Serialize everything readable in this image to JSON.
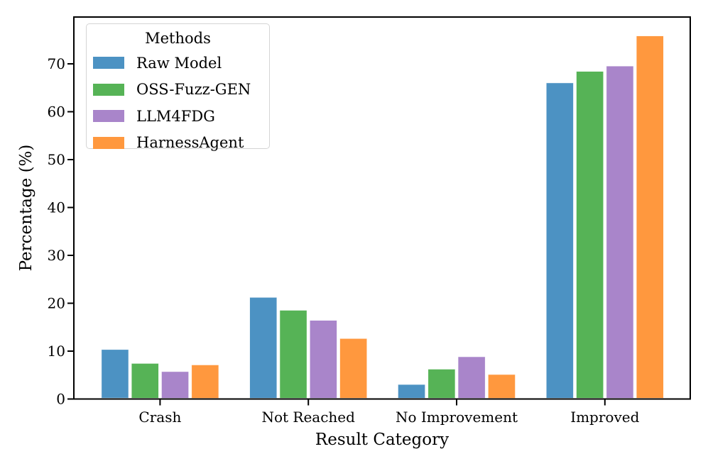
{
  "chart_data": {
    "type": "bar",
    "categories": [
      "Crash",
      "Not Reached",
      "No Improvement",
      "Improved"
    ],
    "series": [
      {
        "name": "Raw Model",
        "color": "#4C92C3",
        "values": [
          10.2,
          21.1,
          2.9,
          65.9
        ]
      },
      {
        "name": "OSS-Fuzz-GEN",
        "color": "#56B356",
        "values": [
          7.3,
          18.4,
          6.1,
          68.3
        ]
      },
      {
        "name": "LLM4FDG",
        "color": "#A985CA",
        "values": [
          5.6,
          16.3,
          8.7,
          69.4
        ]
      },
      {
        "name": "HarnessAgent",
        "color": "#FF983E",
        "values": [
          7.0,
          12.5,
          5.0,
          75.7
        ]
      }
    ],
    "title": "",
    "xlabel": "Result Category",
    "ylabel": "Percentage (%)",
    "ylim": [
      0,
      79.8
    ],
    "yticks": [
      "0",
      "10",
      "20",
      "30",
      "40",
      "50",
      "60",
      "70"
    ],
    "grid": false,
    "axis_color": "#000000",
    "legend": {
      "title": "Methods",
      "position": "upper-left"
    }
  }
}
